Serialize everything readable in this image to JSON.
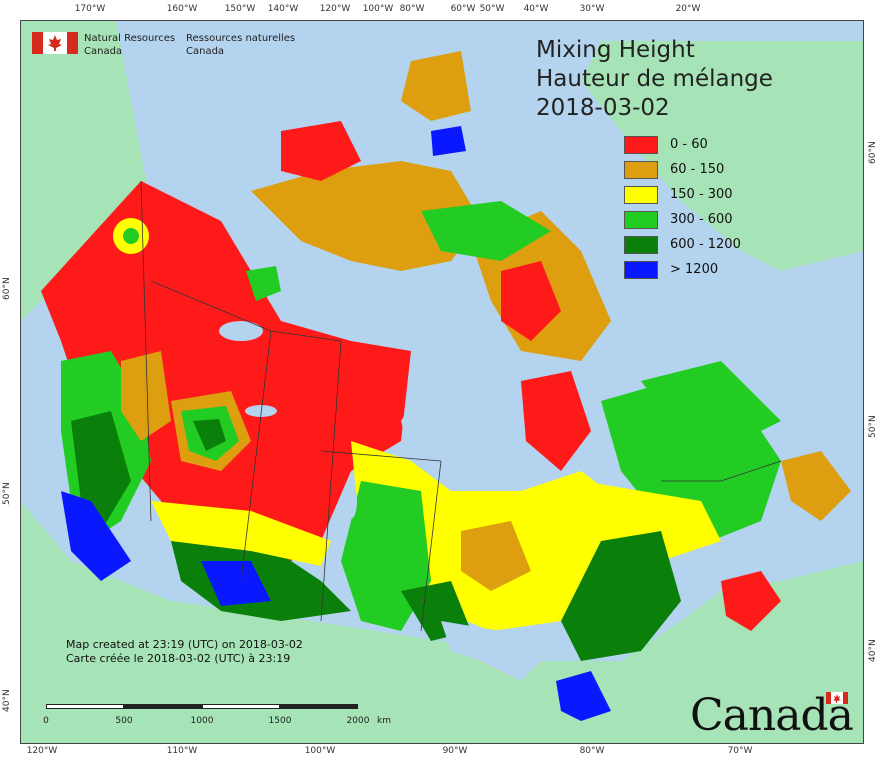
{
  "agency": {
    "name_en_line1": "Natural Resources",
    "name_en_line2": "Canada",
    "name_fr_line1": "Ressources naturelles",
    "name_fr_line2": "Canada"
  },
  "title": {
    "line_en": "Mixing Height",
    "line_fr": "Hauteur de mélange",
    "date": "2018-03-02"
  },
  "legend": [
    {
      "label": "0 - 60",
      "color": "#ff1a1a"
    },
    {
      "label": "60 - 150",
      "color": "#dd9f10"
    },
    {
      "label": "150 - 300",
      "color": "#ffff00"
    },
    {
      "label": "300 - 600",
      "color": "#22cc22"
    },
    {
      "label": "600 - 1200",
      "color": "#0a800a"
    },
    {
      "label": "> 1200",
      "color": "#0a18ff"
    }
  ],
  "graticule": {
    "top": [
      "170°W",
      "160°W",
      "150°W",
      "140°W",
      "120°W",
      "100°W",
      "80°W",
      "60°W",
      "50°W",
      "40°W",
      "30°W",
      "20°W"
    ],
    "bottom": [
      "120°W",
      "110°W",
      "100°W",
      "90°W",
      "80°W",
      "70°W"
    ],
    "left": [
      "60°N",
      "50°N",
      "40°N"
    ],
    "right": [
      "60°N",
      "50°N",
      "40°N"
    ]
  },
  "footer": {
    "created_en": "Map created at 23:19 (UTC) on 2018-03-02",
    "created_fr": "Carte créée le 2018-03-02 (UTC) à 23:19"
  },
  "scale_bar": {
    "labels": [
      "0",
      "500",
      "1000",
      "1500",
      "2000"
    ],
    "unit": "km"
  },
  "wordmark": "Canada",
  "colors": {
    "water": "#b3d3ef",
    "land_outside": "#a6e3b6",
    "boundary": "#333333"
  }
}
